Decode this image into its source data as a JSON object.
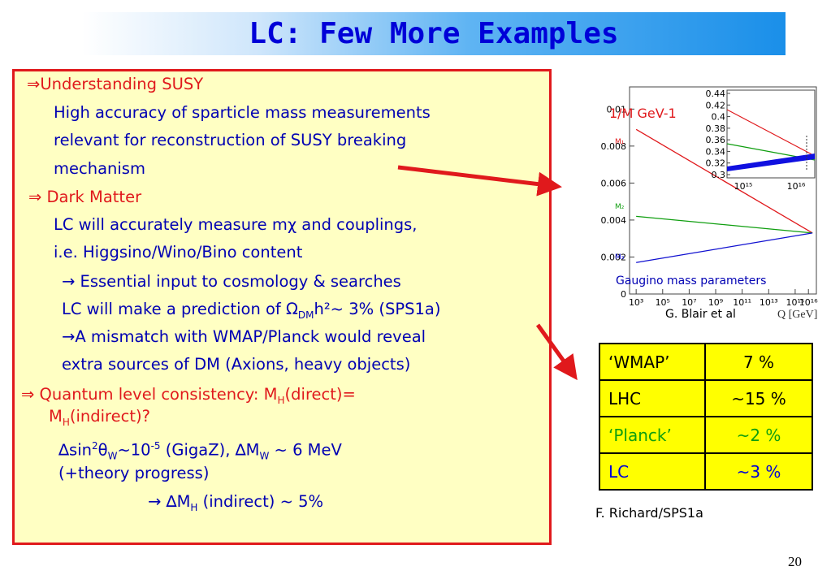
{
  "title": "LC: Few More Examples",
  "bullets": {
    "susy_heading": "⇒Understanding SUSY",
    "susy_1": "High accuracy of sparticle mass measurements",
    "susy_2": "relevant for reconstruction  of SUSY breaking",
    "susy_3": "mechanism",
    "dm_heading": "⇒ Dark Matter",
    "dm_1": "LC will accurately measure mχ and couplings,",
    "dm_2": "i.e. Higgsino/Wino/Bino content",
    "dm_3": "→ Essential input to cosmology & searches",
    "dm_4a": "LC will make a prediction of Ω",
    "dm_4sub": "DM",
    "dm_4b": "h²~ 3% (SPS1a)",
    "dm_5": "→A mismatch with WMAP/Planck would reveal",
    "dm_6": "extra sources of DM (Axions, heavy objects)",
    "ql_heading_a": "⇒ Quantum level consistency: M",
    "ql_heading_sub": "H",
    "ql_heading_b": "(direct)=",
    "ql_heading2_a": "M",
    "ql_heading2_sub": "H",
    "ql_heading2_b": "(indirect)?",
    "ql_1a": "∆sin",
    "ql_1sup": "2",
    "ql_1b": "θ",
    "ql_1sub": "W",
    "ql_1c": "~10",
    "ql_1sup2": "-5",
    "ql_1d": "  (GigaZ), ∆M",
    "ql_1sub2": "W",
    "ql_1e": " ~ 6 MeV",
    "ql_2": "(+theory progress)",
    "ql_3a": "→ ∆M",
    "ql_3sub": "H",
    "ql_3b": " (indirect) ~ 5%"
  },
  "chart_data": {
    "type": "line",
    "title": "",
    "ylabel": "1/M GeV-1",
    "xlabel": "Q [GeV]",
    "x_ticks": [
      "10³",
      "10⁵",
      "10⁷",
      "10⁹",
      "10¹¹",
      "10¹³",
      "10¹⁵",
      "10¹⁶"
    ],
    "y_ticks": [
      "0",
      "0.002",
      "0.004",
      "0.006",
      "0.008",
      "0.01"
    ],
    "series": [
      {
        "name": "M1",
        "color": "#e0191c",
        "x": [
          1000.0,
          2e+16
        ],
        "y": [
          0.0089,
          0.0033
        ]
      },
      {
        "name": "M2",
        "color": "#0f9e0f",
        "x": [
          1000.0,
          2e+16
        ],
        "y": [
          0.0042,
          0.0033
        ]
      },
      {
        "name": "M3",
        "color": "#1010d0",
        "x": [
          1000.0,
          2e+16
        ],
        "y": [
          0.0017,
          0.0033
        ]
      }
    ],
    "inset": {
      "y_ticks": [
        "0.44",
        "0.42",
        "0.4",
        "0.38",
        "0.36",
        "0.34",
        "0.32",
        "0.3"
      ],
      "x_ticks": [
        "10¹⁵",
        "10¹⁶"
      ]
    },
    "annotation": "Gaugino mass parameters",
    "credit": "G. Blair et al"
  },
  "table": {
    "rows": [
      {
        "label": "‘WMAP’",
        "value": "7 %",
        "color": "#000000"
      },
      {
        "label": "LHC",
        "value": "~15 %",
        "color": "#000000"
      },
      {
        "label": "‘Planck’",
        "value": "~2 %",
        "color": "#0f9e0f"
      },
      {
        "label": "LC",
        "value": "~3 %",
        "color": "#0000d8"
      }
    ]
  },
  "table_credit": "F. Richard/SPS1a",
  "page_number": "20"
}
